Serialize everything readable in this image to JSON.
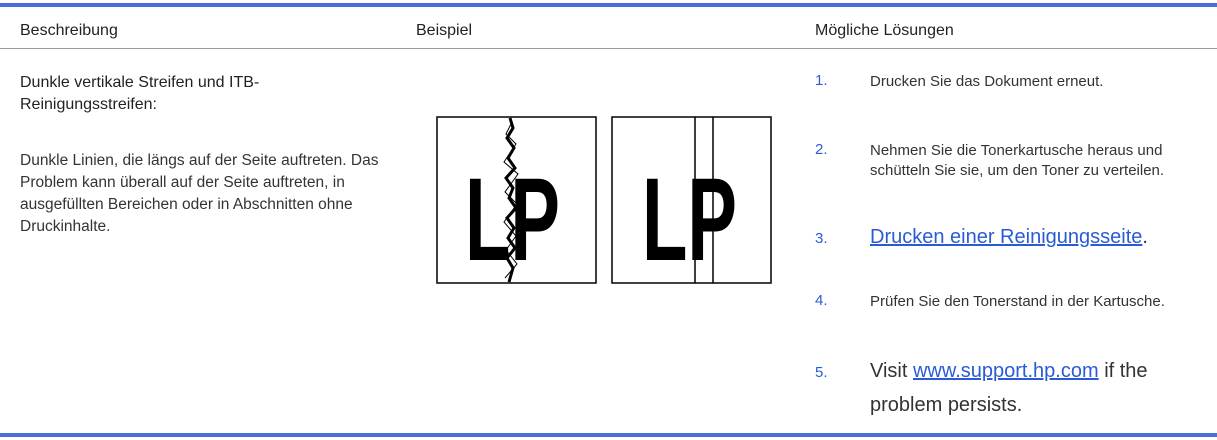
{
  "table": {
    "header": [
      "Beschreibung",
      "Beispiel",
      "Mögliche Lösungen"
    ],
    "rows": [
      {
        "description": {
          "title": "Dunkle vertikale Streifen und ITB-Reinigungsstreifen:",
          "text": "Dunkle Linien, die längs auf der Seite auftreten. Das Problem kann überall auf der Seite auftreten, in ausgefüllten Bereichen oder in Abschnitten ohne Druckinhalte."
        },
        "example": [
          {
            "letters": "LP"
          },
          {
            "letters": "LP"
          }
        ],
        "solutions": [
          {
            "number": "1.",
            "text": "Drucken Sie das Dokument erneut."
          },
          {
            "number": "2.",
            "text": "Nehmen Sie die Tonerkartusche heraus und schütteln Sie sie, um den Toner zu verteilen."
          },
          {
            "number": "3.",
            "link": "Drucken einer Reinigungsseite",
            "after": "."
          },
          {
            "number": "4.",
            "text": "Prüfen Sie den Tonerstand in der Kartusche."
          },
          {
            "number": "5.",
            "before": "Visit",
            "link": "www.support.hp.com",
            "after": "if the problem persists."
          }
        ]
      }
    ]
  }
}
